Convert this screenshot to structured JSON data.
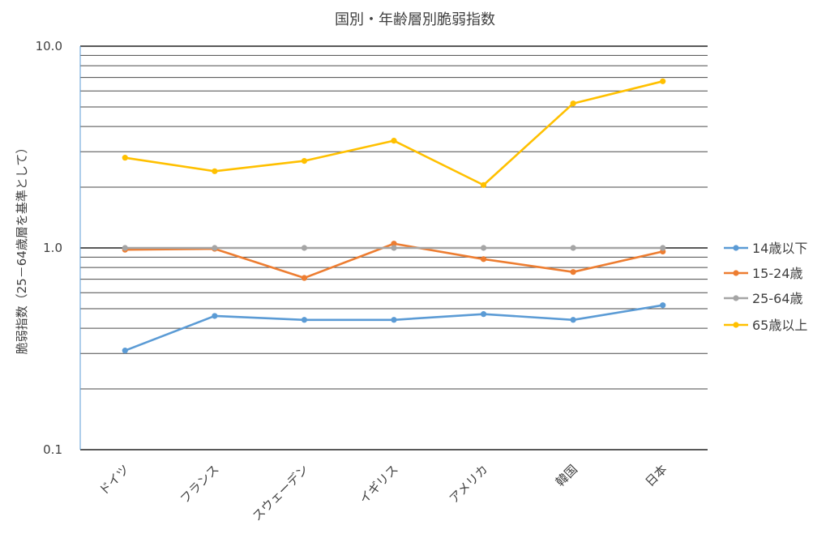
{
  "chart_data": {
    "type": "line",
    "title": "国別・年齢層別脆弱指数",
    "ylabel": "脆弱指数（25－64歳層を基準として）",
    "xlabel": "",
    "yscale": "log",
    "ylim": [
      0.1,
      10.0
    ],
    "ytick_labels": [
      "10.0",
      "1.0",
      "0.1"
    ],
    "grid": true,
    "legend_position": "right",
    "categories": [
      "ドイツ",
      "フランス",
      "スウェーデン",
      "イギリス",
      "アメリカ",
      "韓国",
      "日本"
    ],
    "series": [
      {
        "name": "14歳以下",
        "color": "#5b9bd5",
        "values": [
          0.31,
          0.46,
          0.44,
          0.44,
          0.47,
          0.44,
          0.52
        ]
      },
      {
        "name": "15-24歳",
        "color": "#ed7d31",
        "values": [
          0.98,
          0.99,
          0.71,
          1.05,
          0.88,
          0.76,
          0.96
        ]
      },
      {
        "name": "25-64歳",
        "color": "#a5a5a5",
        "values": [
          1.0,
          1.0,
          1.0,
          1.0,
          1.0,
          1.0,
          1.0
        ]
      },
      {
        "name": "65歳以上",
        "color": "#ffc000",
        "values": [
          2.8,
          2.4,
          2.7,
          3.4,
          2.05,
          5.2,
          6.7
        ]
      }
    ]
  }
}
